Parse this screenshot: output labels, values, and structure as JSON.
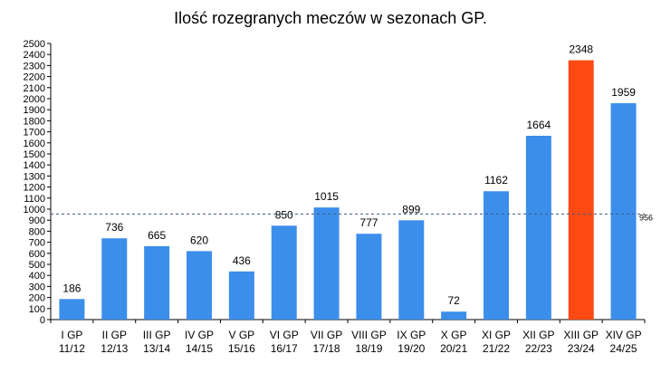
{
  "chart_data": {
    "type": "bar",
    "title": "Ilość rozegranych meczów w sezonach GP.",
    "xlabel": "",
    "ylabel": "",
    "ylim": [
      0,
      2500
    ],
    "ytick_step": 100,
    "grid": false,
    "legend": "none",
    "categories": [
      [
        "I GP",
        "11/12"
      ],
      [
        "II GP",
        "12/13"
      ],
      [
        "III GP",
        "13/14"
      ],
      [
        "IV GP",
        "14/15"
      ],
      [
        "V GP",
        "15/16"
      ],
      [
        "VI GP",
        "16/17"
      ],
      [
        "VII GP",
        "17/18"
      ],
      [
        "VIII GP",
        "18/19"
      ],
      [
        "IX GP",
        "19/20"
      ],
      [
        "X GP",
        "20/21"
      ],
      [
        "XI GP",
        "21/22"
      ],
      [
        "XII GP",
        "22/23"
      ],
      [
        "XIII GP",
        "23/24"
      ],
      [
        "XIV GP",
        "24/25"
      ]
    ],
    "values": [
      186,
      736,
      665,
      620,
      436,
      850,
      1015,
      777,
      899,
      72,
      1162,
      1664,
      2348,
      1959
    ],
    "highlight_index": 12,
    "colors": {
      "bar": "#3c8eeb",
      "highlight": "#ff4a14",
      "reference_line": "#3e5a80"
    },
    "reference_line": {
      "value": 956,
      "label": "956"
    }
  }
}
